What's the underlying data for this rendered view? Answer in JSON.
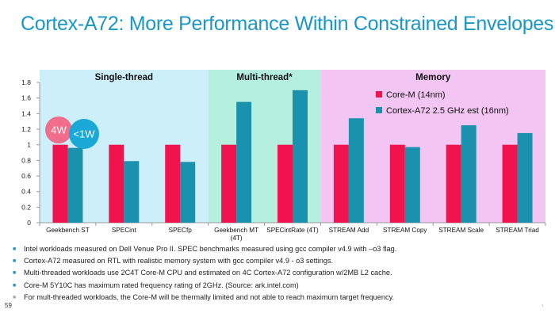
{
  "slide": {
    "title": "Cortex-A72: More Performance Within Constrained Envelopes",
    "page_number": "59",
    "bullets": [
      "Intel workloads measured on Dell Venue Pro II.  SPEC benchmarks measured using gcc compiler v4.9 with –o3 flag.",
      "Cortex-A72 measured on RTL  with realistic memory system with gcc compiler v4.9 -  o3 settings.",
      "Multi-threaded workloads use 2C4T Core-M CPU and estimated on 4C Cortex-A72 configuration w/2MB L2 cache.",
      "Core-M 5Y10C  has maximum  rated frequency rating of 2GHz. (Source: ark.intel.com)",
      "For mult-threaded workloads, the Core-M will be thermally limited  and not able to reach maximum target  frequency."
    ],
    "bullet_marks": [
      "blue",
      "blue",
      "blue",
      "blue",
      "grey"
    ],
    "bullet_glyph": "■"
  },
  "chart_data": {
    "type": "bar",
    "categories": [
      "Geekbench ST",
      "SPECint",
      "SPECfp",
      "Geekbench MT (4T)",
      "SPECintRate (4T)",
      "STREAM Add",
      "STREAM Copy",
      "STREAM  Scale",
      "STREAM Triad"
    ],
    "category_lines": [
      [
        "Geekbench ST"
      ],
      [
        "SPECint"
      ],
      [
        "SPECfp"
      ],
      [
        "Geekbench MT",
        "(4T)"
      ],
      [
        "SPECintRate (4T)"
      ],
      [
        "STREAM Add"
      ],
      [
        "STREAM Copy"
      ],
      [
        "STREAM  Scale"
      ],
      [
        "STREAM Triad"
      ]
    ],
    "series": [
      {
        "name": "Core-M (14nm)",
        "color": "#f0134d",
        "values": [
          1.0,
          1.0,
          1.0,
          1.0,
          1.0,
          1.0,
          1.0,
          1.0,
          1.0
        ]
      },
      {
        "name": "Cortex-A72 2.5 GHz est (16nm)",
        "color": "#1a91ad",
        "values": [
          0.96,
          0.79,
          0.78,
          1.55,
          1.7,
          1.34,
          0.97,
          1.25,
          1.15
        ]
      }
    ],
    "ylim": [
      0,
      1.8
    ],
    "yticks": [
      "0",
      "0.2",
      "0.4",
      "0.6",
      "0.8",
      "1",
      "1.2",
      "1.4",
      "1.6",
      "1.8"
    ],
    "ytick_values": [
      0,
      0.2,
      0.4,
      0.6,
      0.8,
      1.0,
      1.2,
      1.4,
      1.6,
      1.8
    ],
    "legend_position": "top-right",
    "grid": false,
    "groups": [
      {
        "label": "Single-thread",
        "start": 0,
        "end": 3,
        "color": "#cdeffa"
      },
      {
        "label": "Multi-thread*",
        "start": 3,
        "end": 5,
        "color": "#b5f0de"
      },
      {
        "label": "Memory",
        "start": 5,
        "end": 9,
        "color": "#f2c5f2"
      }
    ],
    "annotations": [
      {
        "text": "4W",
        "color": "#f06d8c",
        "series": 0
      },
      {
        "text": "<1W",
        "color": "#1aa8d6",
        "series": 1
      }
    ]
  }
}
